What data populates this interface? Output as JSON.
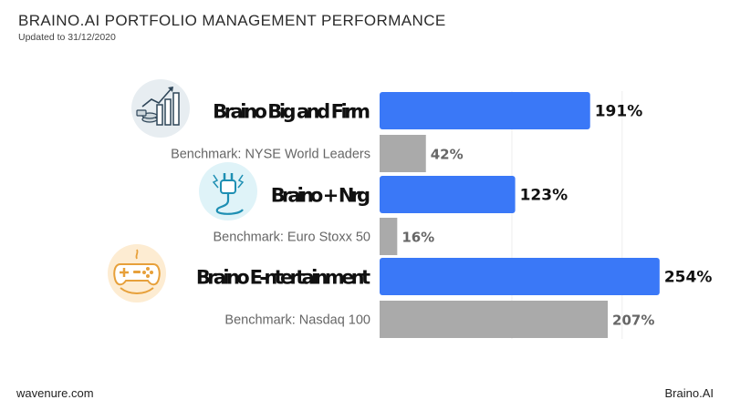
{
  "header": {
    "title": "BRAINO.AI PORTFOLIO MANAGEMENT PERFORMANCE",
    "subtitle": "Updated to 31/12/2020"
  },
  "footer": {
    "left": "wavenure.com",
    "right": "Braino.AI"
  },
  "icons": [
    {
      "name": "growth-chart-icon"
    },
    {
      "name": "power-plug-icon"
    },
    {
      "name": "gamepad-icon"
    }
  ],
  "chart_data": {
    "type": "bar",
    "orientation": "horizontal",
    "xlim": [
      0,
      300
    ],
    "grid": true,
    "categories": [
      "Braino Big and Firm",
      "Benchmark: NYSE World Leaders",
      "Braino + Nrg",
      "Benchmark: Euro Stoxx 50",
      "Braino E-ntertainment",
      "Benchmark: Nasdaq 100"
    ],
    "values": [
      191,
      42,
      123,
      16,
      254,
      207
    ],
    "value_labels": [
      "191%",
      "42%",
      "123%",
      "16%",
      "254%",
      "207%"
    ],
    "kinds": [
      "fund",
      "benchmark",
      "fund",
      "benchmark",
      "fund",
      "benchmark"
    ],
    "colors": {
      "fund": "#3a78f7",
      "benchmark": "#aaaaaa",
      "fund_label": "#111111",
      "benchmark_label": "#666666",
      "grid": "#eeeeee"
    }
  }
}
